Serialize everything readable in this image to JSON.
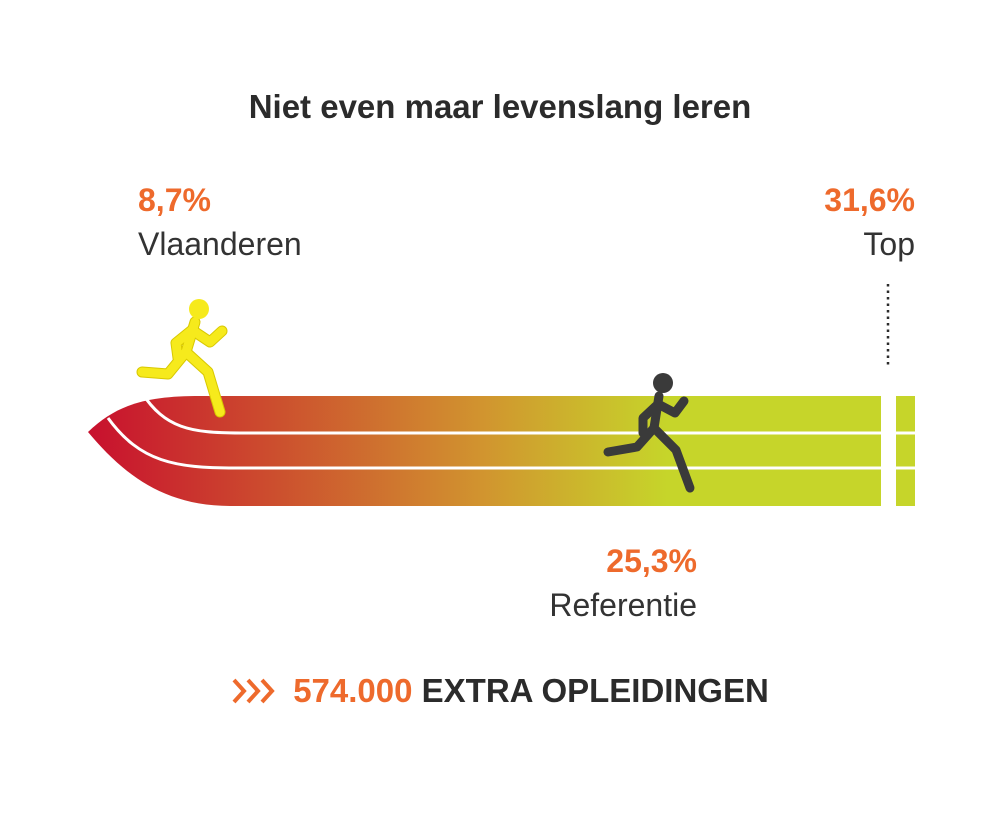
{
  "chart_data": {
    "type": "bar",
    "title": "Niet even maar levenslang leren",
    "unit": "%",
    "items": [
      {
        "name": "Vlaanderen",
        "value": 8.7,
        "label": "8,7%"
      },
      {
        "name": "Referentie",
        "value": 25.3,
        "label": "25,3%"
      },
      {
        "name": "Top",
        "value": 31.6,
        "label": "31,6%"
      }
    ],
    "colors": {
      "gradient_start": "#c8102e",
      "gradient_mid": "#d1952f",
      "gradient_end": "#c6d52a",
      "vlaanderen_runner": "#f6ea1c",
      "referentie_runner": "#3a3a3a",
      "accent": "#ee6a2c",
      "text": "#2b2b2b"
    }
  },
  "footer": {
    "icon": "triple-chevron-icon",
    "number": "574.000",
    "text": "EXTRA OPLEIDINGEN"
  }
}
